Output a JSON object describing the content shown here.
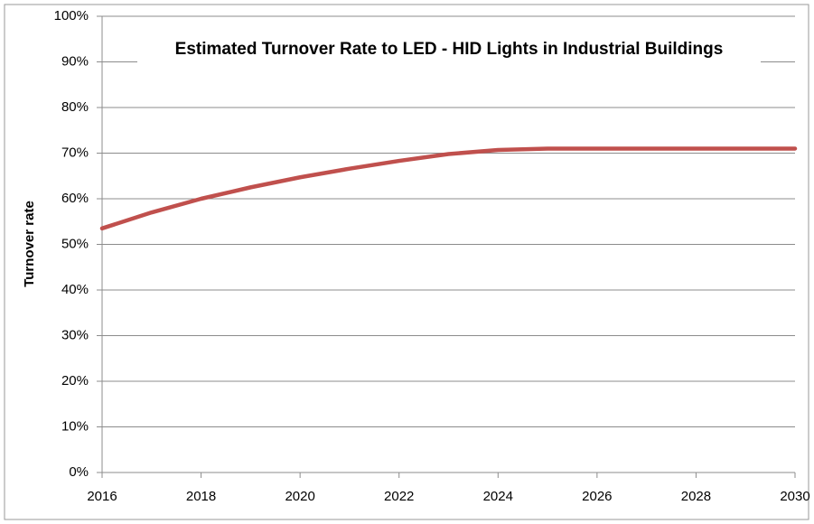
{
  "chart_data": {
    "type": "line",
    "title": "Estimated Turnover Rate to LED - HID Lights in Industrial Buildings",
    "y_label": "Turnover rate",
    "x": [
      2016,
      2017,
      2018,
      2019,
      2020,
      2021,
      2022,
      2023,
      2024,
      2025,
      2026,
      2027,
      2028,
      2029,
      2030
    ],
    "values": [
      53.5,
      57,
      60,
      62.5,
      64.7,
      66.6,
      68.3,
      69.8,
      70.7,
      71,
      71,
      71,
      71,
      71,
      71
    ],
    "color": "#c0504d",
    "xlim": [
      2016,
      2030
    ],
    "xticks": [
      2016,
      2018,
      2020,
      2022,
      2024,
      2026,
      2028,
      2030
    ],
    "ylim": [
      0,
      100
    ],
    "yticks": [
      {
        "value": 0,
        "label": "0%"
      },
      {
        "value": 10,
        "label": "10%"
      },
      {
        "value": 20,
        "label": "20%"
      },
      {
        "value": 30,
        "label": "30%"
      },
      {
        "value": 40,
        "label": "40%"
      },
      {
        "value": 50,
        "label": "50%"
      },
      {
        "value": 60,
        "label": "60%"
      },
      {
        "value": 70,
        "label": "70%"
      },
      {
        "value": 80,
        "label": "80%"
      },
      {
        "value": 90,
        "label": "90%"
      },
      {
        "value": 100,
        "label": "100%"
      }
    ],
    "grid": true
  }
}
